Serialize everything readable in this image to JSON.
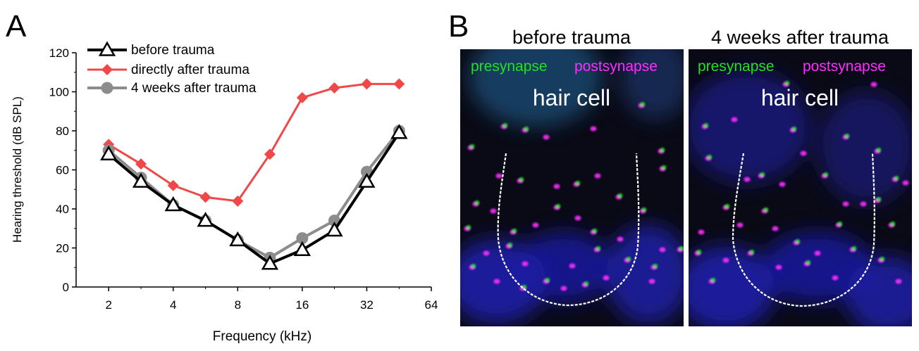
{
  "panel_a": {
    "letter": "A",
    "chart_data": {
      "type": "line",
      "xlabel": "Frequency (kHz)",
      "ylabel": "Hearing threshold (dB SPL)",
      "x_scale": "log2",
      "xlim": [
        1.41,
        64
      ],
      "ylim": [
        0,
        120
      ],
      "x_ticks": [
        2,
        4,
        8,
        16,
        32,
        64
      ],
      "y_ticks": [
        0,
        20,
        40,
        60,
        80,
        100,
        120
      ],
      "grid": false,
      "legend_position": "top-left",
      "series": [
        {
          "name": "before trauma",
          "color": "#000000",
          "marker": "open-triangle",
          "x": [
            2,
            2.83,
            4,
            5.66,
            8,
            11.3,
            16,
            22.6,
            32,
            45.3
          ],
          "values": [
            68,
            54,
            42,
            34,
            24,
            12,
            19,
            29,
            54,
            79
          ]
        },
        {
          "name": "directly after trauma",
          "color": "#f04848",
          "marker": "filled-diamond",
          "x": [
            2,
            2.83,
            4,
            5.66,
            8,
            11.3,
            16,
            22.6,
            32,
            45.3
          ],
          "values": [
            73,
            63,
            52,
            46,
            44,
            68,
            97,
            102,
            104,
            104
          ]
        },
        {
          "name": "4 weeks after trauma",
          "color": "#8c8c8c",
          "marker": "filled-circle",
          "x": [
            2,
            2.83,
            4,
            5.66,
            8,
            11.3,
            16,
            22.6,
            32,
            45.3
          ],
          "values": [
            70,
            56,
            42,
            34,
            24,
            15,
            25,
            34,
            59,
            80
          ]
        }
      ]
    }
  },
  "panel_b": {
    "letter": "B",
    "images": [
      {
        "title": "before trauma",
        "label_pre": "presynapse",
        "label_post": "postsynapse",
        "cell_label": "hair cell"
      },
      {
        "title": "4 weeks after trauma",
        "label_pre": "presynapse",
        "label_post": "postsynapse",
        "cell_label": "hair cell"
      }
    ],
    "colors": {
      "presynapse": "#22e022",
      "postsynapse": "#ff2cff",
      "background": "#0a0a16",
      "nucleus": "#1c1ca8"
    }
  }
}
